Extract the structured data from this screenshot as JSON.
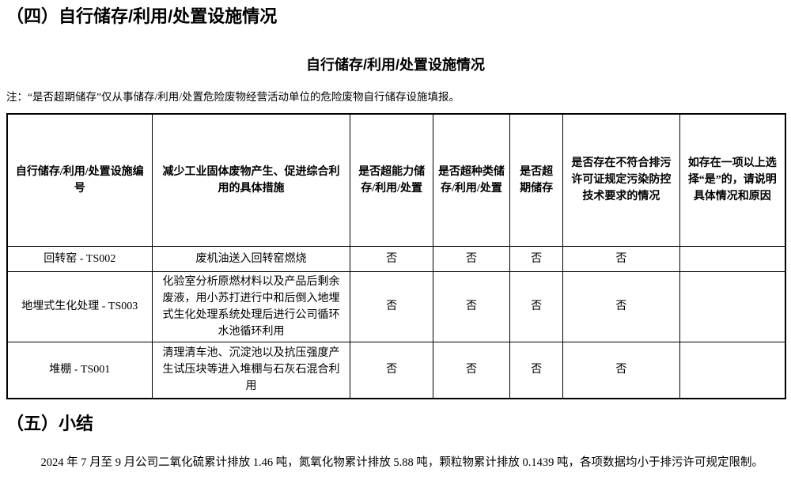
{
  "page": {
    "section4_title": "（四）自行储存/利用/处置设施情况",
    "table_title": "自行储存/利用/处置设施情况",
    "note": "注：“是否超期储存”仅从事储存/利用/处置危险废物经营活动单位的危险废物自行储存设施填报。",
    "section5_title": "（五）小结",
    "summary": "2024 年 7 月至 9 月公司二氧化硫累计排放 1.46 吨，氮氧化物累计排放 5.88 吨，颗粒物累计排放 0.1439 吨，各项数据均小于排污许可规定限制。"
  },
  "table": {
    "headers": [
      "自行储存/利用/处置设施编号",
      "减少工业固体废物产生、促进综合利用的具体措施",
      "是否超能力储存/利用/处置",
      "是否超种类储存/利用/处置",
      "是否超期储存",
      "是否存在不符合排污许可证规定污染防控技术要求的情况",
      "如存在一项以上选择“是”的，请说明具体情况和原因"
    ],
    "rows": [
      [
        "回转窑 - TS002",
        "废机油送入回转窑燃烧",
        "否",
        "否",
        "否",
        "否",
        ""
      ],
      [
        "地埋式生化处理 - TS003",
        "化验室分析原燃材料以及产品后剩余废液，用小苏打进行中和后倒入地埋式生化处理系统处理后进行公司循环水池循环利用",
        "否",
        "否",
        "否",
        "否",
        ""
      ],
      [
        "堆棚 - TS001",
        "清理清车池、沉淀池以及抗压强度产生试压块等进入堆棚与石灰石混合利用",
        "否",
        "否",
        "否",
        "否",
        ""
      ]
    ]
  },
  "colors": {
    "text": "#000000",
    "background": "#ffffff",
    "table_border": "#000000"
  }
}
